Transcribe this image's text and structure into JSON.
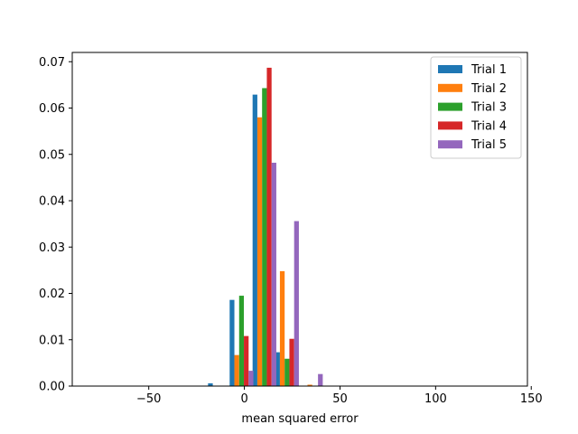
{
  "chart_data": {
    "type": "bar",
    "title": "",
    "xlabel": "mean squared error",
    "ylabel": "",
    "xlim": [
      -90,
      148
    ],
    "ylim": [
      0,
      0.072
    ],
    "x_ticks": [
      -50,
      0,
      50,
      100,
      150
    ],
    "x_tick_labels": [
      "−50",
      "0",
      "50",
      "100",
      "150"
    ],
    "y_ticks": [
      0,
      0.01,
      0.02,
      0.03,
      0.04,
      0.05,
      0.06,
      0.07
    ],
    "y_tick_labels": [
      "0.00",
      "0.01",
      "0.02",
      "0.03",
      "0.04",
      "0.05",
      "0.06",
      "0.07"
    ],
    "bin_centers": [
      -12.8,
      -1.5,
      10.5,
      22.3
    ],
    "bin_width": 12.4,
    "grid": false,
    "legend_position": "top-right",
    "series": [
      {
        "name": "Trial 1",
        "color": "#1f77b4",
        "values": [
          0.0006,
          0.0186,
          0.0629,
          0.0073
        ]
      },
      {
        "name": "Trial 2",
        "color": "#ff7f0e",
        "values": [
          0.0,
          0.0067,
          0.058,
          0.0248
        ]
      },
      {
        "name": "Trial 3",
        "color": "#2ca02c",
        "values": [
          0.0,
          0.0195,
          0.0643,
          0.0059
        ]
      },
      {
        "name": "Trial 4",
        "color": "#d62728",
        "values": [
          0.0,
          0.0108,
          0.0687,
          0.0102
        ]
      },
      {
        "name": "Trial 5",
        "color": "#9467bd",
        "values": [
          0.0,
          0.0033,
          0.0482,
          0.0356
        ]
      }
    ],
    "extra_bars": [
      {
        "series": "Trial 5",
        "x": 38.5,
        "value": 0.0026
      },
      {
        "series": "Trial 2",
        "x": 33.0,
        "value": 0.0003
      }
    ]
  }
}
